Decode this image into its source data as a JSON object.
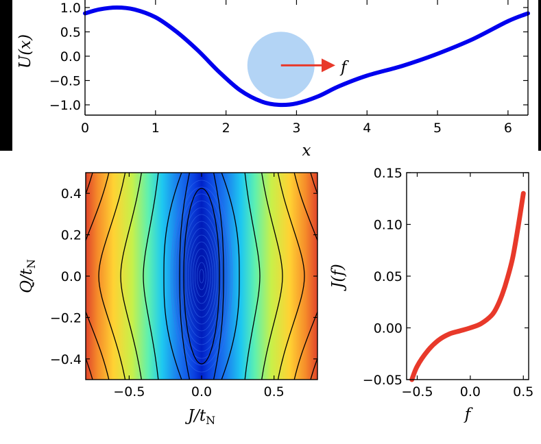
{
  "chart_data": [
    {
      "type": "line",
      "panel": "potential",
      "xlabel": "x",
      "ylabel": "U(x)",
      "xlim": [
        0,
        6.2832
      ],
      "ylim": [
        -1.2,
        1.2
      ],
      "xticks": [
        "0",
        "1",
        "2",
        "3",
        "4",
        "5",
        "6"
      ],
      "yticks": [
        "1.0",
        "0.5",
        "0.0",
        "−0.5",
        "−1.0"
      ],
      "line_color": "#0000ee",
      "x": [
        0.0,
        0.2,
        0.45,
        0.7,
        1.0,
        1.3,
        1.6,
        1.9,
        2.2,
        2.5,
        2.75,
        3.0,
        3.3,
        3.6,
        4.0,
        4.5,
        5.0,
        5.5,
        6.0,
        6.2832
      ],
      "y": [
        0.88,
        0.96,
        1.0,
        0.96,
        0.8,
        0.5,
        0.12,
        -0.32,
        -0.7,
        -0.93,
        -1.0,
        -0.97,
        -0.83,
        -0.62,
        -0.4,
        -0.2,
        0.05,
        0.35,
        0.72,
        0.88
      ],
      "annotation": {
        "label": "f",
        "particle_x": 2.75,
        "particle_y": -0.16,
        "particle_color": "#b3d4f5",
        "arrow_color": "#e8392a",
        "arrow_x_end": 3.55
      }
    },
    {
      "type": "heatmap",
      "panel": "contour",
      "xlabel_main": "J/t",
      "xlabel_sub": "N",
      "ylabel_main": "Q/t",
      "ylabel_sub": "N",
      "xlim": [
        -0.8,
        0.8
      ],
      "ylim": [
        -0.5,
        0.5
      ],
      "xticks": [
        "−0.5",
        "0.0",
        "0.5"
      ],
      "yticks": [
        "0.4",
        "0.2",
        "0.0",
        "−0.2",
        "−0.4"
      ],
      "colormap": "jet",
      "contour_color": "#000000"
    },
    {
      "type": "line",
      "panel": "current",
      "xlabel": "f",
      "ylabel": "J(f)",
      "xlim": [
        -0.6,
        0.55
      ],
      "ylim": [
        -0.05,
        0.15
      ],
      "xticks": [
        "−0.5",
        "0.0",
        "0.5"
      ],
      "yticks": [
        "0.15",
        "0.10",
        "0.05",
        "0.00",
        "−0.05"
      ],
      "line_color": "#e8392a",
      "x": [
        -0.55,
        -0.5,
        -0.4,
        -0.3,
        -0.2,
        -0.1,
        0.0,
        0.1,
        0.2,
        0.25,
        0.3,
        0.35,
        0.4,
        0.45,
        0.5
      ],
      "y": [
        -0.05,
        -0.037,
        -0.022,
        -0.012,
        -0.006,
        -0.003,
        0.0,
        0.004,
        0.012,
        0.02,
        0.032,
        0.048,
        0.068,
        0.097,
        0.13
      ]
    }
  ]
}
